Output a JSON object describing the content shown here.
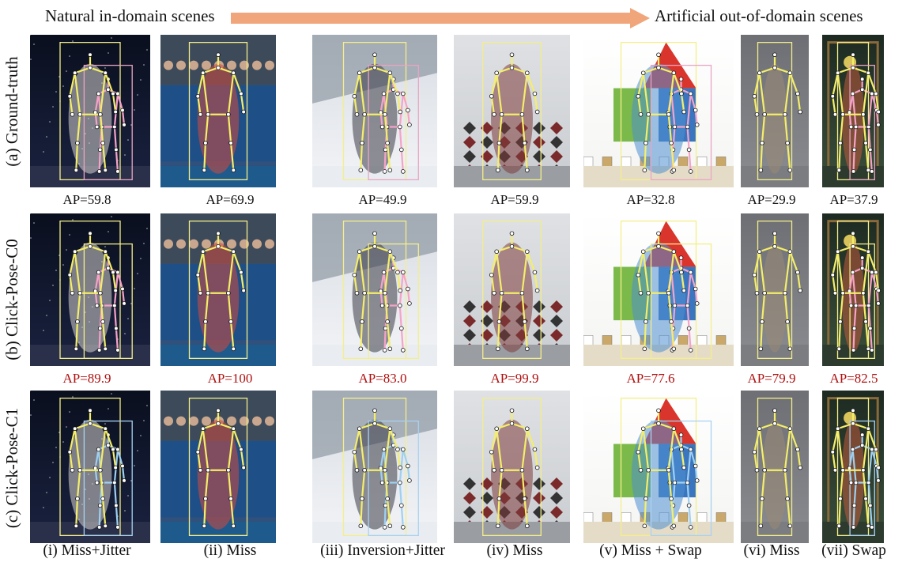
{
  "header": {
    "left": "Natural in-domain scenes",
    "right": "Artificial out-of-domain scenes",
    "arrow_color": "#f0a57a"
  },
  "rows": [
    {
      "label": "(a) Ground-truth",
      "ap": [
        "AP=59.8",
        "AP=69.9",
        "AP=49.9",
        "AP=59.9",
        "AP=32.8",
        "AP=29.9",
        "AP=37.9"
      ],
      "highlight": false
    },
    {
      "label": "(b) Click-Pose-C0",
      "ap": [
        "AP=89.9",
        "AP=100",
        "AP=83.0",
        "AP=99.9",
        "AP=77.6",
        "AP=79.9",
        "AP=82.5"
      ],
      "highlight": true
    },
    {
      "label": "(c) Click-Pose-C1",
      "ap": [],
      "highlight": false
    }
  ],
  "columns": [
    {
      "label": "(i) Miss+Jitter",
      "scene": "dancer-night"
    },
    {
      "label": "(ii) Miss",
      "scene": "gymnast-arena"
    },
    {
      "label": "(iii) Inversion+Jitter",
      "scene": "ski-slope"
    },
    {
      "label": "(iv) Miss",
      "scene": "harlequin-painting"
    },
    {
      "label": "(v) Miss + Swap",
      "scene": "gnome-illustration"
    },
    {
      "label": "(vi) Miss",
      "scene": "clay-statue"
    },
    {
      "label": "(vii) Swap",
      "scene": "stained-glass"
    }
  ],
  "colors": {
    "ap_highlight": "#b01010",
    "skeleton_yellow": "#f4ee6a",
    "skeleton_pink": "#f5a3c8",
    "skeleton_blue": "#9fd0f0",
    "box_yellow": "#f4ee8a",
    "box_pink": "#e9a5c3",
    "box_blue": "#a9d2f0"
  }
}
